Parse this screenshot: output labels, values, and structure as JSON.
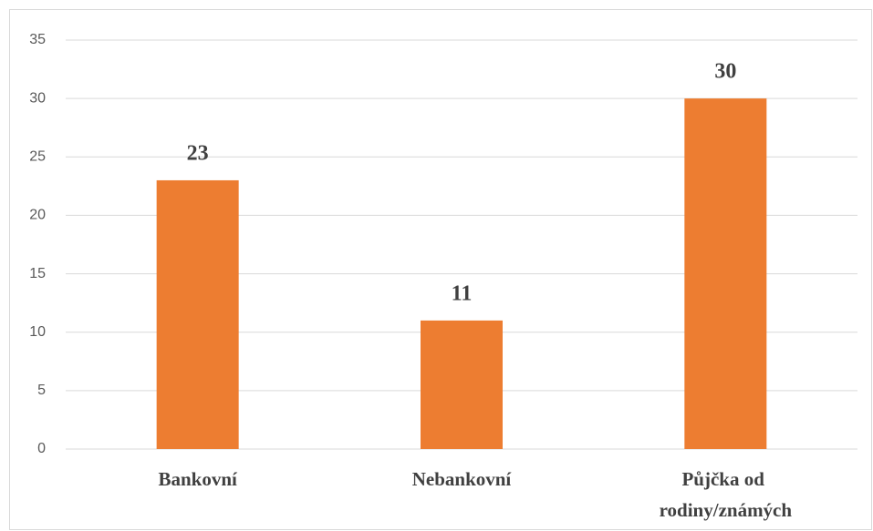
{
  "chart_data": {
    "type": "bar",
    "categories": [
      "Bankovní",
      "Nebankovní",
      "Půjčka od rodiny/známých"
    ],
    "values": [
      23,
      11,
      30
    ],
    "color": "#ed7d31",
    "ylim": [
      0,
      35
    ],
    "yticks": [
      0,
      5,
      10,
      15,
      20,
      25,
      30,
      35
    ],
    "grid": true
  }
}
